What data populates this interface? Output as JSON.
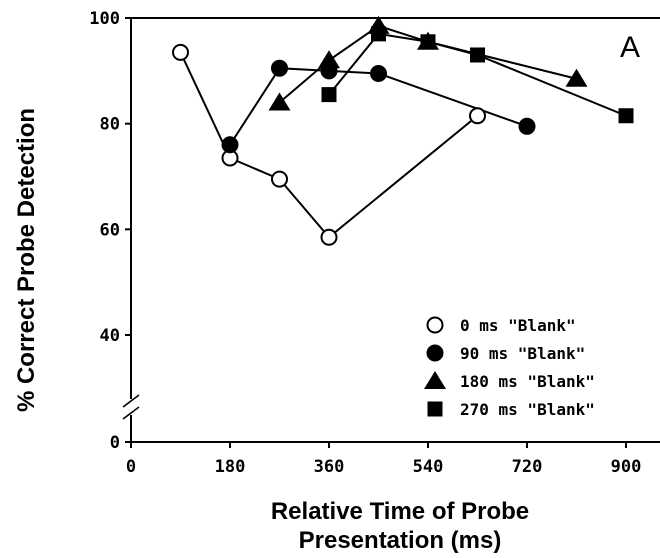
{
  "chart_data": {
    "type": "line",
    "title": "",
    "panel_label": "A",
    "xlabel_lines": [
      "Relative Time of Probe",
      "Presentation (ms)"
    ],
    "ylabel": "% Correct Probe Detection",
    "x_ticks": [
      0,
      180,
      360,
      540,
      720,
      900
    ],
    "y_ticks": [
      0,
      40,
      60,
      80,
      100
    ],
    "xlim": [
      0,
      960
    ],
    "ylim": [
      0,
      100
    ],
    "y_axis_break": "between 0 and 40",
    "legend_position": "bottom-right",
    "series": [
      {
        "name": "0 ms \"Blank\"",
        "marker": "circle-open",
        "x": [
          90,
          180,
          270,
          360,
          630
        ],
        "y": [
          93.5,
          73.5,
          69.5,
          58.5,
          81.5
        ]
      },
      {
        "name": "90 ms \"Blank\"",
        "marker": "circle-filled",
        "x": [
          180,
          270,
          360,
          450,
          720
        ],
        "y": [
          76,
          90.5,
          90,
          89.5,
          79.5
        ]
      },
      {
        "name": "180 ms \"Blank\"",
        "marker": "triangle",
        "x": [
          270,
          360,
          450,
          540,
          810
        ],
        "y": [
          84,
          92,
          98.5,
          95.5,
          88.5
        ]
      },
      {
        "name": "270 ms \"Blank\"",
        "marker": "square",
        "x": [
          360,
          450,
          540,
          630,
          900
        ],
        "y": [
          85.5,
          97,
          95.5,
          93,
          81.5
        ]
      }
    ]
  }
}
